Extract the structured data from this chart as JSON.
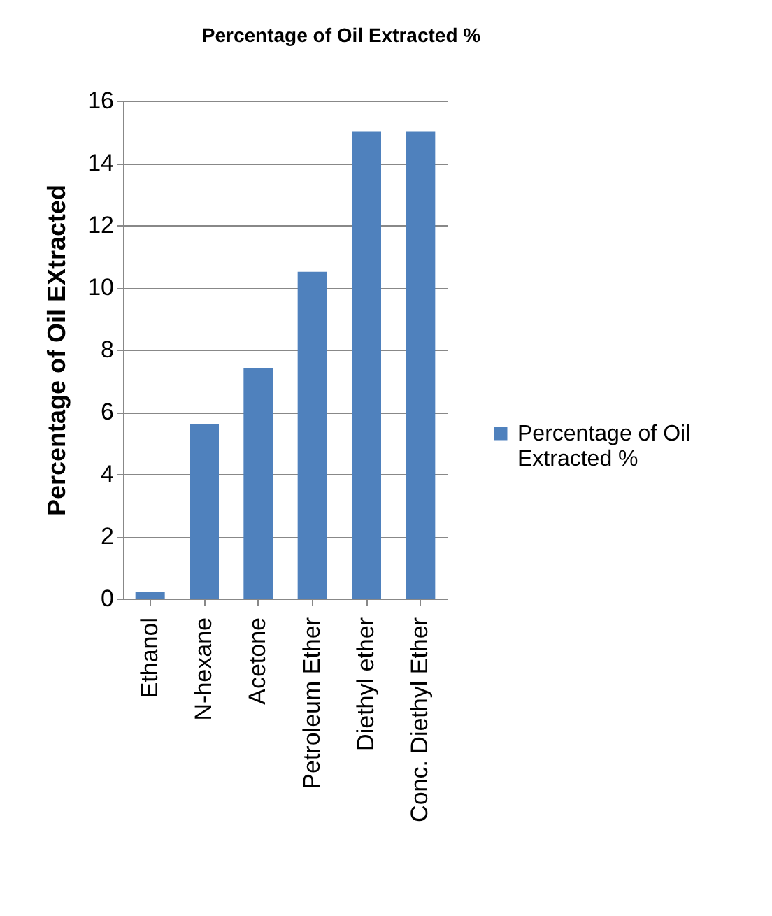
{
  "chart_data": {
    "type": "bar",
    "title": "Percentage of Oil Extracted %",
    "ylabel": "Percentage of Oil EXtracted",
    "categories": [
      "Ethanol",
      "N-hexane",
      "Acetone",
      "Petroleum Ether",
      "Diethyl ether",
      "Conc. Diethyl Ether"
    ],
    "series": [
      {
        "name": "Percentage of Oil Extracted %",
        "color": "#4f81bd",
        "values": [
          0.2,
          5.6,
          7.4,
          10.5,
          15,
          15
        ]
      }
    ],
    "ylim": [
      0,
      16
    ],
    "yticks": [
      0,
      2,
      4,
      6,
      8,
      10,
      12,
      14,
      16
    ],
    "grid": "y",
    "legend": "right"
  }
}
